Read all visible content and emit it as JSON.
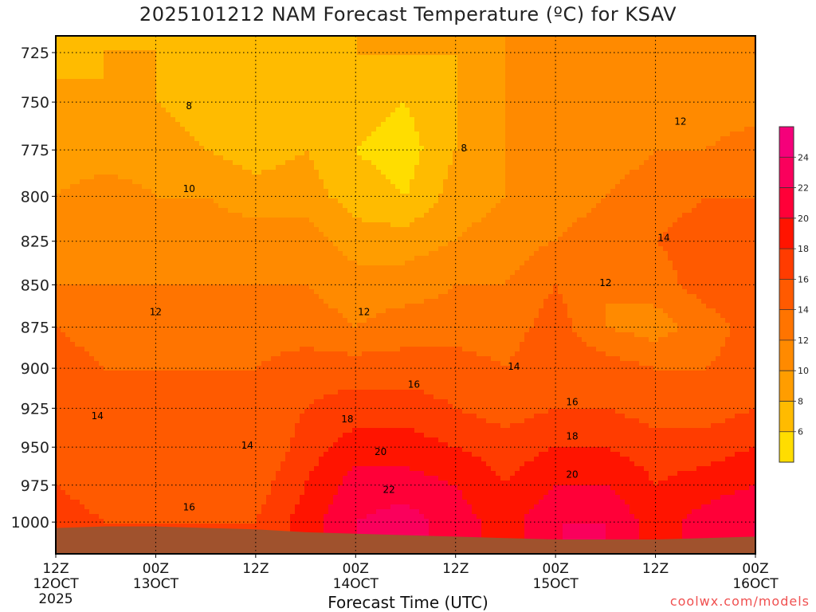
{
  "chart_data": {
    "type": "heatmap",
    "title": "2025101212 NAM Forecast Temperature (ºC) for KSAV",
    "xlabel": "Forecast Time (UTC)",
    "ylabel": "",
    "credit": "coolwx.com/models",
    "x_hours": [
      0,
      6,
      12,
      18,
      24,
      30,
      36,
      42,
      48,
      54,
      60,
      66,
      72,
      78,
      84
    ],
    "xlim": [
      0,
      84
    ],
    "ylim_pressure_hPa": [
      716.7,
      1021.5
    ],
    "pressure_levels": [
      715,
      725,
      750,
      775,
      800,
      825,
      850,
      875,
      900,
      925,
      950,
      975,
      1000,
      1015
    ],
    "temperature_c": [
      [
        7,
        7,
        9,
        9,
        10,
        11,
        12,
        14,
        15,
        14,
        15,
        16,
        17,
        17
      ],
      [
        7,
        8,
        8,
        9,
        11,
        11,
        12,
        13,
        14,
        14,
        15,
        15,
        16,
        17
      ],
      [
        8,
        8,
        8,
        9,
        10,
        11,
        12,
        13,
        14,
        14,
        15,
        15,
        16,
        16
      ],
      [
        7,
        7,
        7,
        8,
        10,
        11,
        12,
        13,
        14,
        14,
        14,
        15,
        16,
        16
      ],
      [
        7,
        7,
        6,
        7,
        9,
        11,
        12,
        13,
        14,
        14,
        14,
        15,
        16,
        16
      ],
      [
        7,
        6,
        7,
        8,
        9,
        11,
        12,
        13,
        15,
        16,
        17,
        18,
        19,
        19
      ],
      [
        8,
        8,
        7,
        6,
        7,
        9,
        11,
        12,
        15,
        17,
        19,
        21,
        22,
        22
      ],
      [
        8,
        8,
        6,
        5,
        6,
        9,
        11,
        13,
        15,
        17,
        19,
        21,
        23,
        23
      ],
      [
        9,
        8,
        8,
        8,
        9,
        10,
        12,
        13,
        15,
        16,
        18,
        20,
        21,
        21
      ],
      [
        10,
        10,
        10,
        10,
        10,
        11,
        12,
        13,
        14,
        15,
        17,
        18,
        19,
        19
      ],
      [
        11,
        10,
        10,
        10,
        11,
        12,
        14,
        15,
        16,
        16,
        18,
        20,
        22,
        22
      ],
      [
        11,
        11,
        11,
        11,
        12,
        13,
        12,
        12,
        15,
        16,
        18,
        20,
        22,
        22
      ],
      [
        11,
        11,
        11,
        12,
        13,
        14,
        13,
        11,
        14,
        15,
        17,
        18,
        19,
        19
      ],
      [
        11,
        11,
        11,
        12,
        14,
        15,
        15,
        13,
        14,
        15,
        17,
        19,
        21,
        21
      ],
      [
        12,
        12,
        11,
        13,
        14,
        14,
        15,
        15,
        15,
        16,
        18,
        20,
        22,
        22
      ]
    ],
    "surface_pressure_hPa": [
      1004,
      1003,
      1003,
      1004,
      1005,
      1007,
      1008,
      1009,
      1010,
      1011,
      1012,
      1012,
      1012,
      1011,
      1010
    ],
    "y_ticks": [
      {
        "p": 725,
        "label": "725"
      },
      {
        "p": 750,
        "label": "750"
      },
      {
        "p": 775,
        "label": "775"
      },
      {
        "p": 800,
        "label": "800"
      },
      {
        "p": 825,
        "label": "825"
      },
      {
        "p": 850,
        "label": "850"
      },
      {
        "p": 875,
        "label": "875"
      },
      {
        "p": 900,
        "label": "900"
      },
      {
        "p": 925,
        "label": "925"
      },
      {
        "p": 950,
        "label": "950"
      },
      {
        "p": 975,
        "label": "975"
      },
      {
        "p": 1000,
        "label": "1000"
      }
    ],
    "x_ticks": [
      {
        "h": 0,
        "l1": "12Z",
        "l2": "12OCT",
        "l3": "2025"
      },
      {
        "h": 12,
        "l1": "00Z",
        "l2": "13OCT",
        "l3": ""
      },
      {
        "h": 24,
        "l1": "12Z",
        "l2": "",
        "l3": ""
      },
      {
        "h": 36,
        "l1": "00Z",
        "l2": "14OCT",
        "l3": ""
      },
      {
        "h": 48,
        "l1": "12Z",
        "l2": "",
        "l3": ""
      },
      {
        "h": 60,
        "l1": "00Z",
        "l2": "15OCT",
        "l3": ""
      },
      {
        "h": 72,
        "l1": "12Z",
        "l2": "",
        "l3": ""
      },
      {
        "h": 84,
        "l1": "00Z",
        "l2": "16OCT",
        "l3": ""
      }
    ],
    "contour_labels": [
      {
        "text": "8",
        "h": 16,
        "p": 752
      },
      {
        "text": "10",
        "h": 16,
        "p": 796
      },
      {
        "text": "12",
        "h": 12,
        "p": 866
      },
      {
        "text": "14",
        "h": 5,
        "p": 930
      },
      {
        "text": "14",
        "h": 23,
        "p": 949
      },
      {
        "text": "16",
        "h": 16,
        "p": 990
      },
      {
        "text": "8",
        "h": 49,
        "p": 774
      },
      {
        "text": "12",
        "h": 37,
        "p": 866
      },
      {
        "text": "14",
        "h": 55,
        "p": 899
      },
      {
        "text": "16",
        "h": 43,
        "p": 910
      },
      {
        "text": "18",
        "h": 35,
        "p": 932
      },
      {
        "text": "20",
        "h": 39,
        "p": 953
      },
      {
        "text": "22",
        "h": 40,
        "p": 978
      },
      {
        "text": "16",
        "h": 62,
        "p": 921
      },
      {
        "text": "18",
        "h": 62,
        "p": 943
      },
      {
        "text": "20",
        "h": 62,
        "p": 968
      },
      {
        "text": "12",
        "h": 75,
        "p": 760
      },
      {
        "text": "14",
        "h": 73,
        "p": 823
      },
      {
        "text": "12",
        "h": 66,
        "p": 849
      }
    ],
    "colorbar": {
      "levels": [
        6,
        8,
        10,
        12,
        14,
        16,
        18,
        20,
        22,
        24
      ],
      "labels": [
        "6",
        "8",
        "10",
        "12",
        "14",
        "16",
        "18",
        "20",
        "22",
        "24"
      ],
      "colors": [
        "#ffdd00",
        "#ffbb00",
        "#ff9d00",
        "#ff8a00",
        "#ff7400",
        "#ff5a00",
        "#ff3c00",
        "#ff1400",
        "#ff0038",
        "#fa005c",
        "#f5007a"
      ]
    },
    "ground_color": "#a0522d"
  }
}
